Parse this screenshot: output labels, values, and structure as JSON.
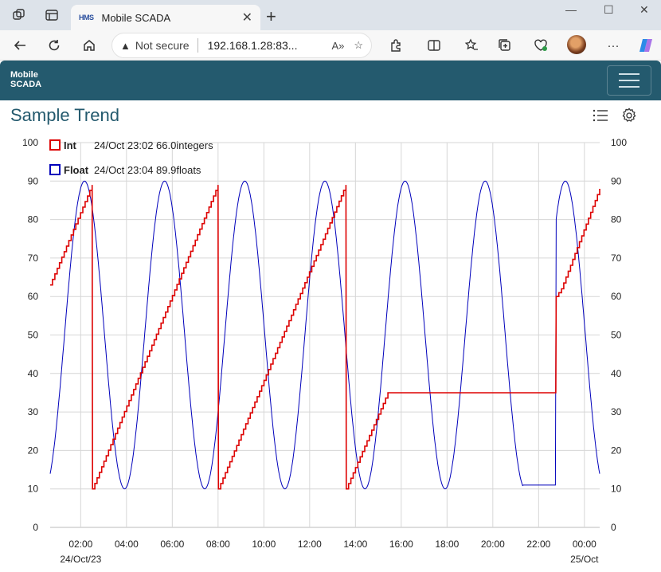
{
  "browser": {
    "tab_title": "Mobile SCADA",
    "tab_favicon_text": "HMS",
    "security_label": "Not secure",
    "url": "192.168.1.28:83...",
    "icons": [
      "workspaces-icon",
      "tab-actions-icon",
      "close-tab-icon",
      "new-tab-icon",
      "back-icon",
      "refresh-icon",
      "home-icon",
      "read-aloud-icon",
      "favorite-icon",
      "extensions-icon",
      "split-screen-icon",
      "favorites-icon",
      "collections-icon",
      "browser-essentials-icon",
      "profile-avatar",
      "more-icon",
      "copilot-icon"
    ]
  },
  "app": {
    "brand": [
      "Mobile",
      "SCADA"
    ],
    "nav_color": "#245a6e"
  },
  "page": {
    "title": "Sample Trend"
  },
  "chart_data": {
    "type": "line",
    "title": "Sample Trend",
    "x_axis": {
      "ticks": [
        "02:00",
        "04:00",
        "06:00",
        "08:00",
        "10:00",
        "12:00",
        "14:00",
        "16:00",
        "18:00",
        "20:00",
        "22:00",
        "00:00"
      ],
      "date_labels": [
        {
          "text": "24/Oct/23",
          "under": "02:00"
        },
        {
          "text": "25/Oct",
          "under": "00:00"
        }
      ],
      "start": "24/Oct 00:40",
      "end": "25/Oct 00:40"
    },
    "y_axis_left": {
      "min": 0,
      "max": 100,
      "ticks": [
        0,
        10,
        20,
        30,
        40,
        50,
        60,
        70,
        80,
        90,
        100
      ]
    },
    "y_axis_right": {
      "min": 0,
      "max": 100,
      "ticks": [
        0,
        10,
        20,
        30,
        40,
        50,
        60,
        70,
        80,
        90,
        100
      ]
    },
    "grid": true,
    "legend_position": "top-left",
    "series": [
      {
        "name": "Int",
        "color": "#dd0000",
        "cursor_readout": "24/Oct 23:02 66.0integers",
        "points": [
          [
            "24/Oct 00:40",
            63
          ],
          [
            "24/Oct 02:30",
            89
          ],
          [
            "24/Oct 02:31",
            10
          ],
          [
            "24/Oct 08:00",
            89
          ],
          [
            "24/Oct 08:01",
            10
          ],
          [
            "24/Oct 13:35",
            89
          ],
          [
            "24/Oct 13:36",
            10
          ],
          [
            "24/Oct 15:25",
            35
          ],
          [
            "24/Oct 22:45",
            35
          ],
          [
            "24/Oct 22:46",
            60
          ],
          [
            "24/Oct 23:00",
            62
          ],
          [
            "25/Oct 00:40",
            88
          ]
        ]
      },
      {
        "name": "Float",
        "color": "#0000bb",
        "cursor_readout": "24/Oct 23:04 89.9floats",
        "shape": "sine",
        "min": 10,
        "max": 90,
        "first_peak": "24/Oct 02:10",
        "period_hours": 3.5,
        "start_value": 12,
        "end_value": 14,
        "flat_segments": [
          {
            "from": "24/Oct 21:20",
            "to": "24/Oct 22:45",
            "value": 11
          }
        ]
      }
    ]
  }
}
